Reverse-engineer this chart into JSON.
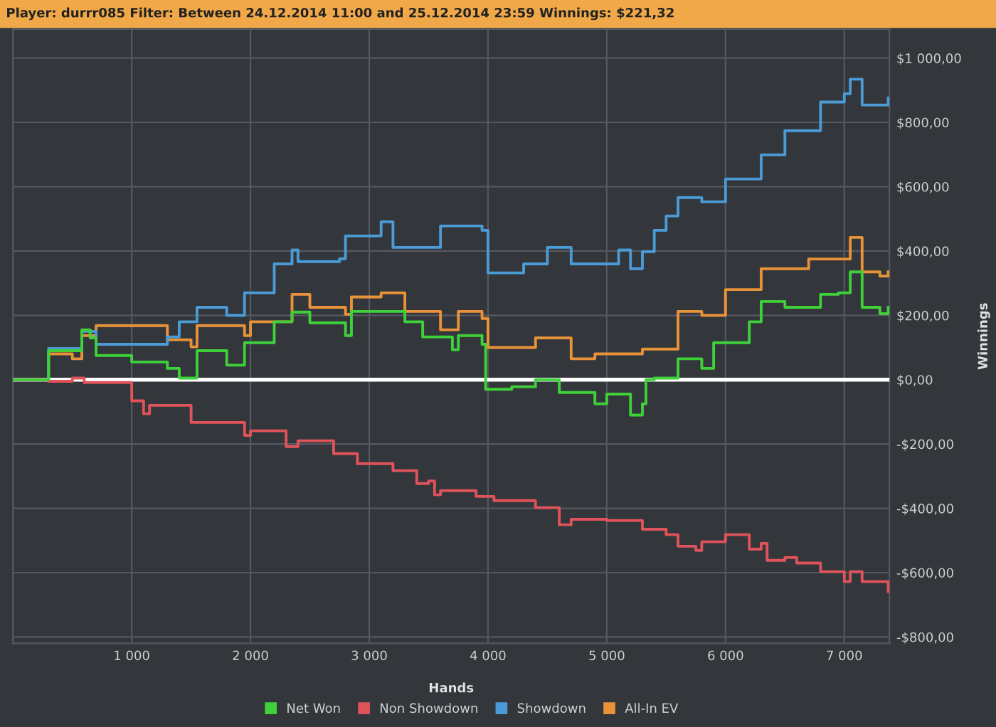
{
  "chart_data": {
    "type": "step",
    "title": "Player: durrr085 Filter: Between 24.12.2014 11:00 and 25.12.2014 23:59 Winnings: $221,32",
    "xlabel": "Hands",
    "ylabel": "Winnings",
    "xlim": [
      0,
      7380
    ],
    "ylim": [
      -820,
      1090
    ],
    "xticks": [
      {
        "value": 1000,
        "label": "1 000"
      },
      {
        "value": 2000,
        "label": "2 000"
      },
      {
        "value": 3000,
        "label": "3 000"
      },
      {
        "value": 4000,
        "label": "4 000"
      },
      {
        "value": 5000,
        "label": "5 000"
      },
      {
        "value": 6000,
        "label": "6 000"
      },
      {
        "value": 7000,
        "label": "7 000"
      }
    ],
    "yticks": [
      {
        "value": -800,
        "label": "-$800,00"
      },
      {
        "value": -600,
        "label": "-$600,00"
      },
      {
        "value": -400,
        "label": "-$400,00"
      },
      {
        "value": -200,
        "label": "-$200,00"
      },
      {
        "value": 0,
        "label": "$0,00"
      },
      {
        "value": 200,
        "label": "$200,00"
      },
      {
        "value": 400,
        "label": "$400,00"
      },
      {
        "value": 600,
        "label": "$600,00"
      },
      {
        "value": 800,
        "label": "$800,00"
      },
      {
        "value": 1000,
        "label": "$1 000,00"
      }
    ],
    "grid": true,
    "legend": "bottom",
    "marker": "none",
    "line_style": "solid",
    "ref_lines": [
      {
        "axis": "y",
        "value": 0,
        "label": null,
        "color": "#ffffff"
      }
    ],
    "series": [
      {
        "name": "Net Won",
        "color": "#3ed13a",
        "x": [
          0,
          300,
          500,
          580,
          650,
          700,
          1000,
          1300,
          1400,
          1550,
          1800,
          1950,
          2200,
          2350,
          2500,
          2800,
          2850,
          3100,
          3300,
          3450,
          3700,
          3750,
          3950,
          3980,
          4200,
          4400,
          4600,
          4900,
          5000,
          5200,
          5300,
          5330,
          5400,
          5600,
          5800,
          5900,
          6200,
          6300,
          6500,
          6800,
          6950,
          7050,
          7150,
          7300,
          7370
        ],
        "values": [
          0,
          90,
          90,
          155,
          130,
          75,
          55,
          35,
          5,
          90,
          45,
          115,
          180,
          210,
          177,
          137,
          212,
          212,
          180,
          133,
          93,
          137,
          110,
          -30,
          -22,
          0,
          -40,
          -75,
          -45,
          -110,
          -75,
          0,
          5,
          65,
          35,
          115,
          180,
          243,
          225,
          265,
          270,
          335,
          225,
          205,
          225
        ]
      },
      {
        "name": "Non Showdown",
        "color": "#e0535a",
        "x": [
          0,
          300,
          500,
          600,
          1000,
          1100,
          1150,
          1500,
          1650,
          1950,
          2000,
          2300,
          2400,
          2700,
          2900,
          3200,
          3400,
          3500,
          3550,
          3600,
          3900,
          4050,
          4400,
          4600,
          4700,
          5000,
          5300,
          5500,
          5600,
          5750,
          5800,
          6000,
          6200,
          6300,
          6350,
          6500,
          6600,
          6800,
          7000,
          7050,
          7150,
          7370
        ],
        "values": [
          0,
          -5,
          5,
          -9,
          -66,
          -106,
          -80,
          -133,
          -133,
          -173,
          -159,
          -208,
          -190,
          -230,
          -261,
          -283,
          -323,
          -315,
          -358,
          -345,
          -363,
          -376,
          -398,
          -451,
          -434,
          -438,
          -465,
          -482,
          -518,
          -531,
          -504,
          -482,
          -527,
          -509,
          -562,
          -553,
          -570,
          -597,
          -628,
          -597,
          -628,
          -659
        ]
      },
      {
        "name": "Showdown",
        "color": "#4a9bd6",
        "x": [
          0,
          300,
          580,
          700,
          1300,
          1400,
          1550,
          1800,
          1950,
          2200,
          2350,
          2400,
          2750,
          2800,
          3100,
          3200,
          3600,
          3950,
          4000,
          4300,
          4500,
          4700,
          5100,
          5200,
          5300,
          5400,
          5500,
          5600,
          5800,
          6000,
          6300,
          6500,
          6800,
          7000,
          7050,
          7150,
          7370
        ],
        "values": [
          0,
          97,
          150,
          110,
          133,
          180,
          225,
          200,
          270,
          360,
          403,
          367,
          376,
          447,
          491,
          411,
          478,
          464,
          332,
          360,
          411,
          360,
          403,
          345,
          398,
          464,
          509,
          566,
          553,
          624,
          699,
          774,
          863,
          889,
          934,
          854,
          876
        ]
      },
      {
        "name": "All-In EV",
        "color": "#e8923a",
        "x": [
          0,
          300,
          500,
          580,
          700,
          1000,
          1300,
          1500,
          1550,
          1950,
          2000,
          2350,
          2500,
          2800,
          2850,
          3100,
          3300,
          3600,
          3750,
          3950,
          4000,
          4400,
          4700,
          4900,
          5300,
          5600,
          5800,
          6000,
          6300,
          6700,
          6950,
          7050,
          7150,
          7300,
          7370
        ],
        "values": [
          0,
          80,
          65,
          137,
          168,
          168,
          124,
          102,
          168,
          137,
          180,
          265,
          225,
          203,
          257,
          270,
          212,
          155,
          212,
          190,
          100,
          130,
          65,
          80,
          95,
          212,
          200,
          280,
          345,
          375,
          375,
          442,
          335,
          322,
          335
        ]
      }
    ]
  }
}
